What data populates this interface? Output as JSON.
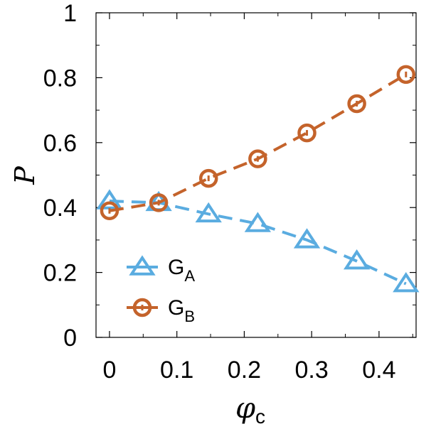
{
  "chart_data": {
    "type": "line",
    "xlabel": "φ",
    "xlabel_sub": "c",
    "ylabel": "P",
    "xlim": [
      -0.02,
      0.455
    ],
    "ylim": [
      0,
      1
    ],
    "x_ticks": [
      0,
      0.1,
      0.2,
      0.3,
      0.4
    ],
    "x_tick_labels": [
      "0",
      "0.1",
      "0.2",
      "0.3",
      "0.4"
    ],
    "y_ticks": [
      0,
      0.2,
      0.4,
      0.6,
      0.8,
      1
    ],
    "y_tick_labels": [
      "0",
      "0.2",
      "0.4",
      "0.6",
      "0.8",
      "1"
    ],
    "grid": false,
    "legend_position": "bottom-left",
    "x": [
      0,
      0.073,
      0.147,
      0.22,
      0.293,
      0.367,
      0.44
    ],
    "series": [
      {
        "name": "G",
        "subscript": "A",
        "marker": "triangle",
        "color": "#5aace0",
        "values": [
          0.42,
          0.415,
          0.38,
          0.35,
          0.3,
          0.235,
          0.165
        ]
      },
      {
        "name": "G",
        "subscript": "B",
        "marker": "circle",
        "color": "#c4632b",
        "values": [
          0.39,
          0.415,
          0.49,
          0.55,
          0.63,
          0.72,
          0.81
        ]
      }
    ]
  }
}
